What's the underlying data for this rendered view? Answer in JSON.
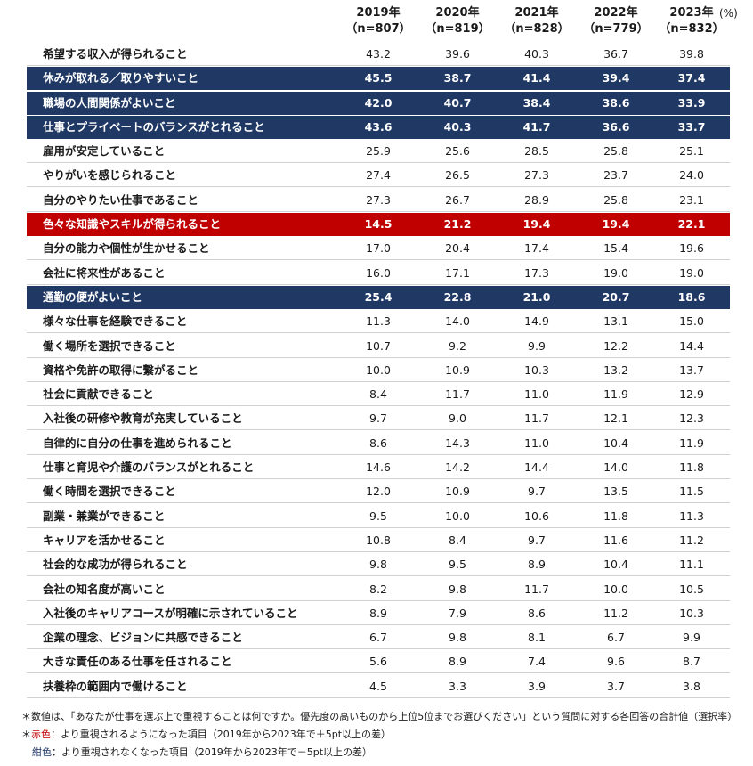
{
  "unit": "(%)",
  "columns": [
    {
      "year": "2019年",
      "n": "（n=807）"
    },
    {
      "year": "2020年",
      "n": "（n=819）"
    },
    {
      "year": "2021年",
      "n": "（n=828）"
    },
    {
      "year": "2022年",
      "n": "（n=779）"
    },
    {
      "year": "2023年",
      "n": "（n=832）"
    }
  ],
  "chart_data": {
    "type": "table",
    "categories": [
      "2019年",
      "2020年",
      "2021年",
      "2022年",
      "2023年"
    ],
    "rows": [
      {
        "label": "希望する収入が得られること",
        "values": [
          "43.2",
          "39.6",
          "40.3",
          "36.7",
          "39.8"
        ],
        "highlight": "none"
      },
      {
        "label": "休みが取れる／取りやすいこと",
        "values": [
          "45.5",
          "38.7",
          "41.4",
          "39.4",
          "37.4"
        ],
        "highlight": "navy"
      },
      {
        "label": "職場の人間関係がよいこと",
        "values": [
          "42.0",
          "40.7",
          "38.4",
          "38.6",
          "33.9"
        ],
        "highlight": "navy"
      },
      {
        "label": "仕事とプライベートのバランスがとれること",
        "values": [
          "43.6",
          "40.3",
          "41.7",
          "36.6",
          "33.7"
        ],
        "highlight": "navy"
      },
      {
        "label": "雇用が安定していること",
        "values": [
          "25.9",
          "25.6",
          "28.5",
          "25.8",
          "25.1"
        ],
        "highlight": "none"
      },
      {
        "label": "やりがいを感じられること",
        "values": [
          "27.4",
          "26.5",
          "27.3",
          "23.7",
          "24.0"
        ],
        "highlight": "none"
      },
      {
        "label": "自分のやりたい仕事であること",
        "values": [
          "27.3",
          "26.7",
          "28.9",
          "25.8",
          "23.1"
        ],
        "highlight": "none"
      },
      {
        "label": "色々な知識やスキルが得られること",
        "values": [
          "14.5",
          "21.2",
          "19.4",
          "19.4",
          "22.1"
        ],
        "highlight": "red"
      },
      {
        "label": "自分の能力や個性が生かせること",
        "values": [
          "17.0",
          "20.4",
          "17.4",
          "15.4",
          "19.6"
        ],
        "highlight": "none"
      },
      {
        "label": "会社に将来性があること",
        "values": [
          "16.0",
          "17.1",
          "17.3",
          "19.0",
          "19.0"
        ],
        "highlight": "none"
      },
      {
        "label": "通勤の便がよいこと",
        "values": [
          "25.4",
          "22.8",
          "21.0",
          "20.7",
          "18.6"
        ],
        "highlight": "navy"
      },
      {
        "label": "様々な仕事を経験できること",
        "values": [
          "11.3",
          "14.0",
          "14.9",
          "13.1",
          "15.0"
        ],
        "highlight": "none"
      },
      {
        "label": "働く場所を選択できること",
        "values": [
          "10.7",
          "9.2",
          "9.9",
          "12.2",
          "14.4"
        ],
        "highlight": "none"
      },
      {
        "label": "資格や免許の取得に繋がること",
        "values": [
          "10.0",
          "10.9",
          "10.3",
          "13.2",
          "13.7"
        ],
        "highlight": "none"
      },
      {
        "label": "社会に貢献できること",
        "values": [
          "8.4",
          "11.7",
          "11.0",
          "11.9",
          "12.9"
        ],
        "highlight": "none"
      },
      {
        "label": "入社後の研修や教育が充実していること",
        "values": [
          "9.7",
          "9.0",
          "11.7",
          "12.1",
          "12.3"
        ],
        "highlight": "none"
      },
      {
        "label": "自律的に自分の仕事を進められること",
        "values": [
          "8.6",
          "14.3",
          "11.0",
          "10.4",
          "11.9"
        ],
        "highlight": "none"
      },
      {
        "label": "仕事と育児や介護のバランスがとれること",
        "values": [
          "14.6",
          "14.2",
          "14.4",
          "14.0",
          "11.8"
        ],
        "highlight": "none"
      },
      {
        "label": "働く時間を選択できること",
        "values": [
          "12.0",
          "10.9",
          "9.7",
          "13.5",
          "11.5"
        ],
        "highlight": "none"
      },
      {
        "label": "副業・兼業ができること",
        "values": [
          "9.5",
          "10.0",
          "10.6",
          "11.8",
          "11.3"
        ],
        "highlight": "none"
      },
      {
        "label": "キャリアを活かせること",
        "values": [
          "10.8",
          "8.4",
          "9.7",
          "11.6",
          "11.2"
        ],
        "highlight": "none"
      },
      {
        "label": "社会的な成功が得られること",
        "values": [
          "9.8",
          "9.5",
          "8.9",
          "10.4",
          "11.1"
        ],
        "highlight": "none"
      },
      {
        "label": "会社の知名度が高いこと",
        "values": [
          "8.2",
          "9.8",
          "11.7",
          "10.0",
          "10.5"
        ],
        "highlight": "none"
      },
      {
        "label": "入社後のキャリアコースが明確に示されていること",
        "values": [
          "8.9",
          "7.9",
          "8.6",
          "11.2",
          "10.3"
        ],
        "highlight": "none"
      },
      {
        "label": "企業の理念、ビジョンに共感できること",
        "values": [
          "6.7",
          "9.8",
          "8.1",
          "6.7",
          "9.9"
        ],
        "highlight": "none"
      },
      {
        "label": "大きな責任のある仕事を任されること",
        "values": [
          "5.6",
          "8.9",
          "7.4",
          "9.6",
          "8.7"
        ],
        "highlight": "none"
      },
      {
        "label": "扶養枠の範囲内で働けること",
        "values": [
          "4.5",
          "3.3",
          "3.9",
          "3.7",
          "3.8"
        ],
        "highlight": "none"
      }
    ]
  },
  "colors": {
    "navy": "#203864",
    "red": "#c00000"
  },
  "notes": {
    "note1": "＊数値は、「あなたが仕事を選ぶ上で重視することは何ですか。優先度の高いものから上位5位までお選びください」という質問に対する各回答の合計値（選択率）",
    "note2_prefix": "＊",
    "note2_red": "赤色",
    "note2_rest": "：より重視されるようになった項目（2019年から2023年で＋5pt以上の差）",
    "note3_navy": "紺色",
    "note3_rest": "：より重視されなくなった項目（2019年から2023年で－5pt以上の差）"
  }
}
